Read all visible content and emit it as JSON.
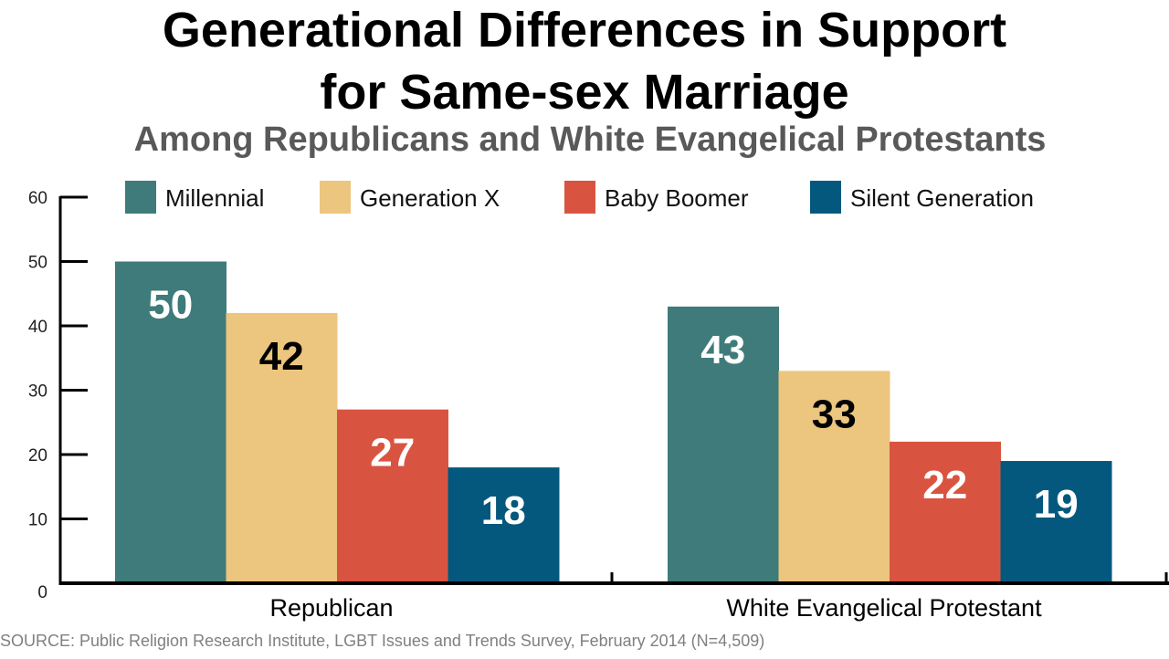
{
  "chart_data": {
    "type": "bar",
    "title_line1": "Generational Differences in Support",
    "title_line2": "for Same-sex Marriage",
    "subtitle": "Among Republicans and White Evangelical Protestants",
    "categories": [
      "Republican",
      "White Evangelical Protestant"
    ],
    "series": [
      {
        "name": "Millennial",
        "color": "#3f7b7a",
        "label_color": "#ffffff",
        "values": [
          50,
          43
        ]
      },
      {
        "name": "Generation X",
        "color": "#ecc57e",
        "label_color": "#000000",
        "values": [
          42,
          33
        ]
      },
      {
        "name": "Baby Boomer",
        "color": "#d95440",
        "label_color": "#ffffff",
        "values": [
          27,
          22
        ]
      },
      {
        "name": "Silent Generation",
        "color": "#04587d",
        "label_color": "#ffffff",
        "values": [
          18,
          19
        ]
      }
    ],
    "ylim": [
      0,
      60
    ],
    "yticks": [
      0,
      10,
      20,
      30,
      40,
      50,
      60
    ],
    "xlabel": "",
    "ylabel": "",
    "legend_position": "top",
    "grid": false,
    "source": "SOURCE: Public Religion Research Institute, LGBT Issues and Trends Survey, February 2014 (N=4,509)"
  }
}
